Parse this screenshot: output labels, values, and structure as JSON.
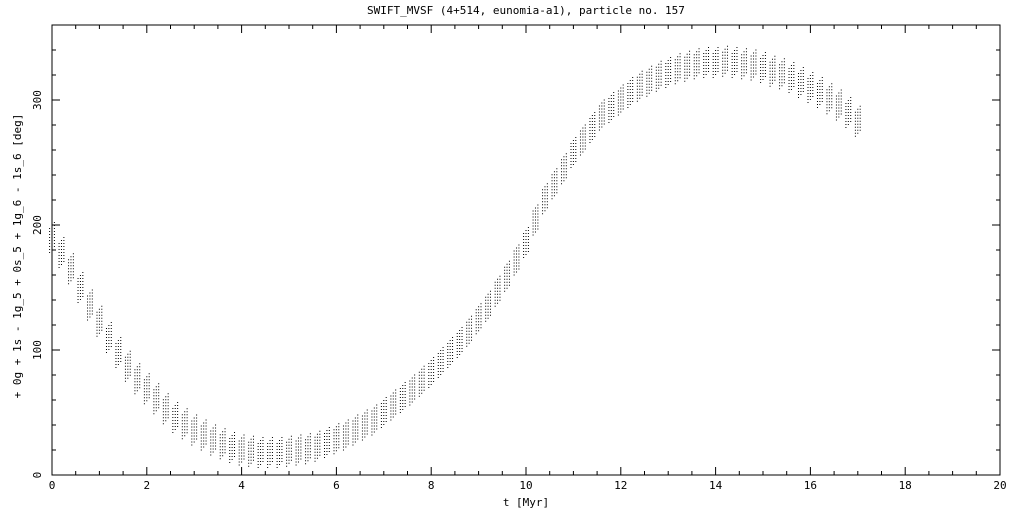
{
  "chart_data": {
    "type": "scatter",
    "title": "SWIFT_MVSF (4+514, eunomia-a1), particle no. 157",
    "xlabel": "t [Myr]",
    "ylabel": "+ 0g + 1s - 1g_5 + 0s_5 + 1g_6 - 1s_6 [deg]",
    "xlim": [
      0,
      20
    ],
    "ylim": [
      0,
      360
    ],
    "xticks": [
      0,
      2,
      4,
      6,
      8,
      10,
      12,
      14,
      16,
      18,
      20
    ],
    "yticks": [
      0,
      100,
      200,
      300
    ],
    "x_minor_step": 0.5,
    "y_minor_step": 20,
    "grid": false,
    "legend": "none",
    "marker_color": "#000000",
    "series": [
      {
        "x": [
          0.0,
          0.2,
          0.4,
          0.6,
          0.8,
          1.0,
          1.2,
          1.4,
          1.6,
          1.8,
          2.0,
          2.2,
          2.4,
          2.6,
          2.8,
          3.0,
          3.2,
          3.4,
          3.6,
          3.8,
          4.0,
          4.2,
          4.4,
          4.6,
          4.8,
          5.0,
          5.2,
          5.4,
          5.6,
          5.8,
          6.0,
          6.2,
          6.4,
          6.6,
          6.8,
          7.0,
          7.2,
          7.4,
          7.6,
          7.8,
          8.0,
          8.2,
          8.4,
          8.6,
          8.8,
          9.0,
          9.2,
          9.4,
          9.6,
          9.8,
          10.0,
          10.2,
          10.4,
          10.6,
          10.8,
          11.0,
          11.2,
          11.4,
          11.6,
          11.8,
          12.0,
          12.2,
          12.4,
          12.6,
          12.8,
          13.0,
          13.2,
          13.4,
          13.6,
          13.8,
          14.0,
          14.2,
          14.4,
          14.6,
          14.8,
          15.0,
          15.2,
          15.4,
          15.6,
          15.8,
          16.0,
          16.2,
          16.4,
          16.6,
          16.8,
          17.0
        ],
        "y": [
          190,
          178,
          165,
          150,
          136,
          123,
          110,
          98,
          87,
          77,
          69,
          61,
          53,
          46,
          41,
          36,
          32,
          28,
          25,
          22,
          20,
          19,
          18,
          18,
          18,
          19,
          20,
          21,
          23,
          26,
          29,
          32,
          36,
          40,
          44,
          50,
          56,
          62,
          68,
          75,
          82,
          90,
          98,
          106,
          115,
          125,
          135,
          147,
          159,
          172,
          186,
          204,
          221,
          233,
          245,
          258,
          268,
          278,
          288,
          294,
          300,
          306,
          311,
          315,
          319,
          322,
          325,
          327,
          329,
          330,
          330,
          331,
          330,
          329,
          328,
          326,
          323,
          321,
          318,
          314,
          310,
          306,
          301,
          296,
          290,
          283
        ],
        "spread": [
          10,
          10,
          10,
          10,
          10,
          10,
          10,
          10,
          10,
          10,
          10,
          10,
          10,
          10,
          10,
          10,
          10,
          10,
          10,
          10,
          10,
          10,
          10,
          10,
          10,
          10,
          10,
          10,
          10,
          10,
          10,
          10,
          10,
          10,
          10,
          10,
          10,
          10,
          10,
          10,
          10,
          10,
          10,
          10,
          10,
          10,
          10,
          10,
          10,
          10,
          10,
          10,
          10,
          10,
          10,
          10,
          10,
          10,
          10,
          10,
          10,
          10,
          10,
          10,
          10,
          10,
          10,
          10,
          10,
          10,
          10,
          10,
          10,
          10,
          10,
          10,
          10,
          10,
          10,
          10,
          10,
          10,
          10,
          10,
          10,
          10
        ]
      }
    ]
  }
}
